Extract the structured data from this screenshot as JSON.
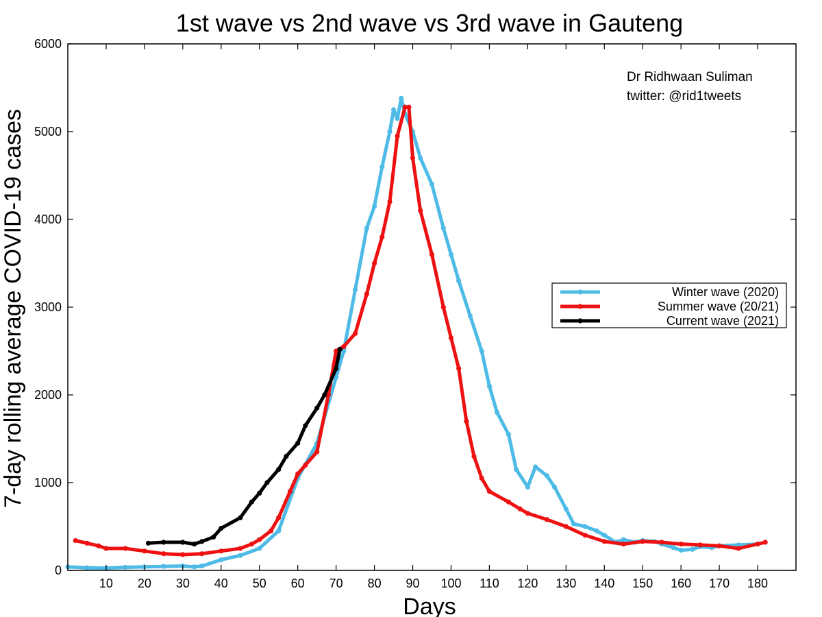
{
  "chart_data": {
    "type": "line",
    "title": "1st wave vs 2nd wave vs 3rd wave in Gauteng",
    "xlabel": "Days",
    "ylabel": "7-day rolling average COVID-19 cases",
    "xlim": [
      0,
      190
    ],
    "ylim": [
      0,
      6000
    ],
    "xticks": [
      10,
      20,
      30,
      40,
      50,
      60,
      70,
      80,
      90,
      100,
      110,
      120,
      130,
      140,
      150,
      160,
      170,
      180
    ],
    "yticks": [
      0,
      1000,
      2000,
      3000,
      4000,
      5000,
      6000
    ],
    "grid": false,
    "legend_position": "right",
    "annotations": [
      "Dr Ridhwaan Suliman",
      "twitter: @rid1tweets"
    ],
    "series": [
      {
        "name": "Winter wave (2020)",
        "color": "#4dbbe6",
        "x": [
          0,
          5,
          10,
          15,
          20,
          25,
          30,
          33,
          35,
          40,
          45,
          50,
          55,
          60,
          65,
          70,
          72,
          75,
          78,
          80,
          82,
          84,
          85,
          86,
          87,
          88,
          90,
          92,
          95,
          98,
          100,
          102,
          105,
          108,
          110,
          112,
          115,
          117,
          120,
          122,
          125,
          127,
          130,
          132,
          135,
          138,
          140,
          143,
          145,
          148,
          150,
          153,
          155,
          158,
          160,
          163,
          165,
          168,
          170,
          175,
          180
        ],
        "y": [
          40,
          30,
          25,
          35,
          40,
          45,
          50,
          40,
          50,
          120,
          170,
          250,
          450,
          1050,
          1450,
          2200,
          2500,
          3200,
          3900,
          4150,
          4600,
          5000,
          5250,
          5150,
          5380,
          5200,
          5000,
          4700,
          4400,
          3900,
          3600,
          3300,
          2900,
          2500,
          2100,
          1800,
          1550,
          1150,
          950,
          1180,
          1080,
          950,
          700,
          530,
          500,
          450,
          400,
          320,
          350,
          320,
          340,
          330,
          300,
          260,
          230,
          240,
          270,
          260,
          280,
          290,
          300
        ]
      },
      {
        "name": "Summer wave (20/21)",
        "color": "#ee1111",
        "x": [
          2,
          5,
          8,
          10,
          15,
          20,
          25,
          30,
          35,
          40,
          45,
          48,
          50,
          53,
          55,
          58,
          60,
          62,
          65,
          68,
          70,
          72,
          75,
          78,
          80,
          82,
          84,
          86,
          88,
          89,
          90,
          92,
          95,
          98,
          100,
          102,
          104,
          106,
          108,
          110,
          115,
          118,
          120,
          125,
          130,
          135,
          140,
          145,
          150,
          155,
          160,
          165,
          170,
          175,
          180,
          182
        ],
        "y": [
          340,
          310,
          280,
          250,
          250,
          220,
          190,
          180,
          190,
          220,
          250,
          300,
          350,
          450,
          600,
          900,
          1100,
          1200,
          1350,
          2000,
          2500,
          2550,
          2700,
          3150,
          3500,
          3800,
          4200,
          4950,
          5280,
          5280,
          4700,
          4100,
          3600,
          3000,
          2650,
          2300,
          1700,
          1300,
          1050,
          900,
          780,
          700,
          650,
          580,
          500,
          400,
          330,
          300,
          330,
          320,
          300,
          290,
          280,
          250,
          300,
          320
        ]
      },
      {
        "name": "Current wave (2021)",
        "color": "#000000",
        "x": [
          21,
          25,
          30,
          33,
          35,
          38,
          40,
          45,
          48,
          50,
          52,
          55,
          57,
          60,
          62,
          65,
          67,
          70,
          71
        ],
        "y": [
          310,
          320,
          320,
          300,
          330,
          380,
          480,
          600,
          780,
          880,
          1000,
          1150,
          1300,
          1450,
          1650,
          1850,
          2000,
          2300,
          2520
        ]
      }
    ]
  }
}
